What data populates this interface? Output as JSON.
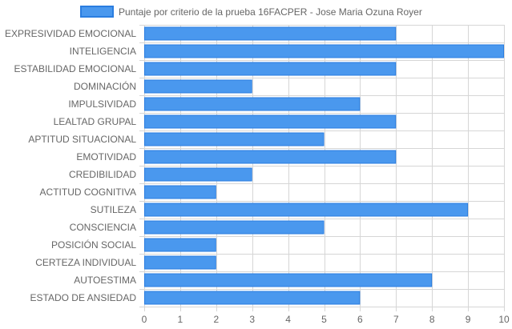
{
  "chart_data": {
    "type": "bar",
    "orientation": "horizontal",
    "categories": [
      "EXPRESIVIDAD EMOCIONAL",
      "INTELIGENCIA",
      "ESTABILIDAD EMOCIONAL",
      "DOMINACIÓN",
      "IMPULSIVIDAD",
      "LEALTAD GRUPAL",
      "APTITUD SITUACIONAL",
      "EMOTIVIDAD",
      "CREDIBILIDAD",
      "ACTITUD COGNITIVA",
      "SUTILEZA",
      "CONSCIENCIA",
      "POSICIÓN SOCIAL",
      "CERTEZA INDIVIDUAL",
      "AUTOESTIMA",
      "ESTADO DE ANSIEDAD"
    ],
    "series": [
      {
        "name": "Puntaje por criterio de la prueba 16FACPER - Jose Maria Ozuna Royer",
        "values": [
          7,
          10,
          7,
          3,
          6,
          7,
          5,
          7,
          3,
          2,
          9,
          5,
          2,
          2,
          8,
          6
        ],
        "color": "#4a98ee",
        "border_color": "#2a7de0"
      }
    ],
    "xlim": [
      0,
      10
    ],
    "x_ticks": [
      "0",
      "1",
      "2",
      "3",
      "4",
      "5",
      "6",
      "7",
      "8",
      "9",
      "10"
    ],
    "grid": true,
    "legend_position": "top"
  }
}
